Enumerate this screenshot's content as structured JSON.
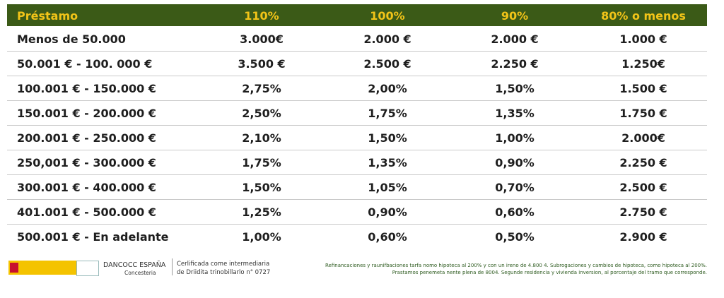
{
  "table": {
    "header": [
      "Préstamo",
      "110%",
      "100%",
      "90%",
      "80% o menos"
    ],
    "rows": [
      [
        "Menos de 50.000",
        "3.000€",
        "2.000 €",
        "2.000 €",
        "1.000 €"
      ],
      [
        "50.001 € - 100. 000 €",
        "3.500 €",
        "2.500 €",
        "2.250 €",
        "1.250€"
      ],
      [
        "100.001 € - 150.000 €",
        "2,75%",
        "2,00%",
        "1,50%",
        "1.500 €"
      ],
      [
        "150.001 € - 200.000 €",
        "2,50%",
        "1,75%",
        "1,35%",
        "1.750 €"
      ],
      [
        "200.001 € - 250.000 €",
        "2,10%",
        "1,50%",
        "1,00%",
        "2.000€"
      ],
      [
        "250,001 € - 300.000 €",
        "1,75%",
        "1,35%",
        "0,90%",
        "2.250 €"
      ],
      [
        "300.001 € - 400.000 €",
        "1,50%",
        "1,05%",
        "0,70%",
        "2.500 €"
      ],
      [
        "401.001 € - 500.000 €",
        "1,25%",
        "0,90%",
        "0,60%",
        "2.750 €"
      ],
      [
        "500.001 € - En adelante",
        "1,00%",
        "0,60%",
        "0,50%",
        "2.900 €"
      ]
    ]
  },
  "footer": {
    "brand": "DANCOCC ESPAÑA",
    "brand_sub": "Concesteria",
    "cert_lines": [
      "Cerlificada come intermediaria",
      "de Driidita trinobillarlo n° 0727"
    ],
    "note_lines": [
      "Refinancaciones y raunifbaciones tarfa nomo hipoteca al 200% y con un ireno de 4.800 4. Subrogaciones y cambios de hipoteca, como hipoteca al 200%.",
      "Prastamos penemeta nente plena de 8004. Segunde residencia y vivienda inversion, al porcentaje del tramo que corresponde."
    ]
  }
}
